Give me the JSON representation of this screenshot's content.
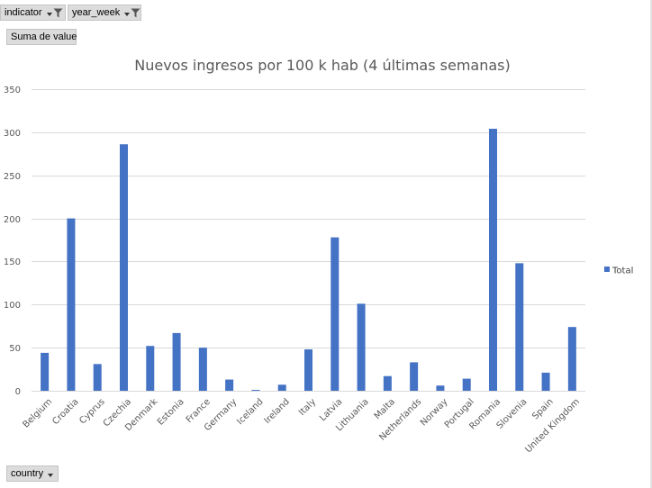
{
  "filters": {
    "indicator_label": "indicator",
    "year_week_label": "year_week",
    "values_label": "Suma de value",
    "axis_field_label": "country"
  },
  "colors": {
    "bar": "#4472c4",
    "grid": "#d9d9d9",
    "text": "#595959"
  },
  "chart_data": {
    "type": "bar",
    "title": "Nuevos ingresos por 100 k hab (4 últimas semanas)",
    "xlabel": "",
    "ylabel": "",
    "ylim": [
      0,
      350
    ],
    "yticks": [
      0,
      50,
      100,
      150,
      200,
      250,
      300,
      350
    ],
    "grid": true,
    "legend_position": "right",
    "categories": [
      "Belgium",
      "Croatia",
      "Cyprus",
      "Czechia",
      "Denmark",
      "Estonia",
      "France",
      "Germany",
      "Iceland",
      "Ireland",
      "Italy",
      "Latvia",
      "Lithuania",
      "Malta",
      "Netherlands",
      "Norway",
      "Portugal",
      "Romania",
      "Slovenia",
      "Spain",
      "United Kingdom"
    ],
    "series": [
      {
        "name": "Total",
        "values": [
          44,
          200,
          31,
          286,
          52,
          67,
          50,
          13,
          1,
          7,
          48,
          178,
          101,
          17,
          33,
          6,
          14,
          304,
          148,
          21,
          74
        ]
      }
    ]
  }
}
